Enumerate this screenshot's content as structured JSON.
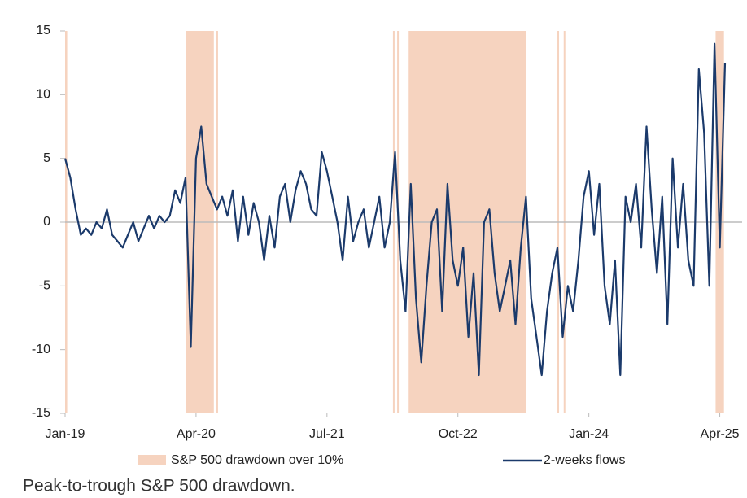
{
  "chart_data": {
    "type": "line",
    "footnote": "Peak-to-trough S&P 500 drawdown.",
    "xlim": [
      2019,
      2025.3
    ],
    "xticks": [
      {
        "value": 2019,
        "label": "Jan-19"
      },
      {
        "value": 2020.25,
        "label": "Apr-20"
      },
      {
        "value": 2021.5,
        "label": "Jul-21"
      },
      {
        "value": 2022.75,
        "label": "Oct-22"
      },
      {
        "value": 2024,
        "label": "Jan-24"
      },
      {
        "value": 2025.25,
        "label": "Apr-25"
      }
    ],
    "ylim": [
      -15,
      15
    ],
    "yticks": [
      -15,
      -10,
      -5,
      0,
      5,
      10,
      15
    ],
    "reference_line": 0,
    "shaded": {
      "name": "S&P 500 drawdown over 10%",
      "color": "#f6d3bf",
      "regions": [
        [
          2019.0,
          2019.02
        ],
        [
          2020.15,
          2020.42
        ],
        [
          2020.44,
          2020.46
        ],
        [
          2022.13,
          2022.14
        ],
        [
          2022.17,
          2022.18
        ],
        [
          2022.28,
          2023.4
        ],
        [
          2023.7,
          2023.71
        ],
        [
          2023.76,
          2023.77
        ],
        [
          2025.21,
          2025.29
        ]
      ]
    },
    "series": [
      {
        "name": "2-weeks flows",
        "color": "#1b3a6b",
        "x": [
          2019,
          2019.05,
          2019.1,
          2019.15,
          2019.2,
          2019.25,
          2019.3,
          2019.35,
          2019.4,
          2019.45,
          2019.5,
          2019.55,
          2019.6,
          2019.65,
          2019.7,
          2019.75,
          2019.8,
          2019.85,
          2019.9,
          2019.95,
          2020,
          2020.05,
          2020.1,
          2020.15,
          2020.2,
          2020.25,
          2020.3,
          2020.35,
          2020.4,
          2020.45,
          2020.5,
          2020.55,
          2020.6,
          2020.65,
          2020.7,
          2020.75,
          2020.8,
          2020.85,
          2020.9,
          2020.95,
          2021,
          2021.05,
          2021.1,
          2021.15,
          2021.2,
          2021.25,
          2021.3,
          2021.35,
          2021.4,
          2021.45,
          2021.5,
          2021.55,
          2021.6,
          2021.65,
          2021.7,
          2021.75,
          2021.8,
          2021.85,
          2021.9,
          2021.95,
          2022,
          2022.05,
          2022.1,
          2022.15,
          2022.2,
          2022.25,
          2022.3,
          2022.35,
          2022.4,
          2022.45,
          2022.5,
          2022.55,
          2022.6,
          2022.65,
          2022.7,
          2022.75,
          2022.8,
          2022.85,
          2022.9,
          2022.95,
          2023,
          2023.05,
          2023.1,
          2023.15,
          2023.2,
          2023.25,
          2023.3,
          2023.35,
          2023.4,
          2023.45,
          2023.5,
          2023.55,
          2023.6,
          2023.65,
          2023.7,
          2023.75,
          2023.8,
          2023.85,
          2023.9,
          2023.95,
          2024,
          2024.05,
          2024.1,
          2024.15,
          2024.2,
          2024.25,
          2024.3,
          2024.35,
          2024.4,
          2024.45,
          2024.5,
          2024.55,
          2024.6,
          2024.65,
          2024.7,
          2024.75,
          2024.8,
          2024.85,
          2024.9,
          2024.95,
          2025,
          2025.05,
          2025.1,
          2025.15,
          2025.2,
          2025.25,
          2025.3
        ],
        "values": [
          5,
          3.5,
          1,
          -1,
          -0.5,
          -1,
          0,
          -0.5,
          1,
          -1,
          -1.5,
          -2,
          -1,
          0,
          -1.5,
          -0.5,
          0.5,
          -0.5,
          0.5,
          0,
          0.5,
          2.5,
          1.5,
          3.5,
          -9.8,
          5,
          7.5,
          3,
          2,
          1,
          2,
          0.5,
          2.5,
          -1.5,
          2,
          -1,
          1.5,
          0,
          -3,
          0.5,
          -2,
          2,
          3,
          0,
          2.5,
          4,
          3,
          1,
          0.5,
          5.5,
          4,
          2,
          0,
          -3,
          2,
          -1.5,
          0,
          1,
          -2,
          0,
          2,
          -2,
          0,
          5.5,
          -3,
          -7,
          3,
          -6,
          -11,
          -5,
          0,
          1,
          -7,
          3,
          -3,
          -5,
          -2,
          -9,
          -4,
          -12,
          0,
          1,
          -4,
          -7,
          -5,
          -3,
          -8,
          -2,
          2,
          -6,
          -9,
          -12,
          -7,
          -4,
          -2,
          -9,
          -5,
          -7,
          -3,
          2,
          4,
          -1,
          3,
          -5,
          -8,
          -3,
          -12,
          2,
          0,
          3,
          -2,
          7.5,
          1,
          -4,
          2,
          -8,
          5,
          -2,
          3,
          -3,
          -5,
          12,
          7,
          -5,
          14,
          -2,
          12.5
        ]
      }
    ]
  }
}
